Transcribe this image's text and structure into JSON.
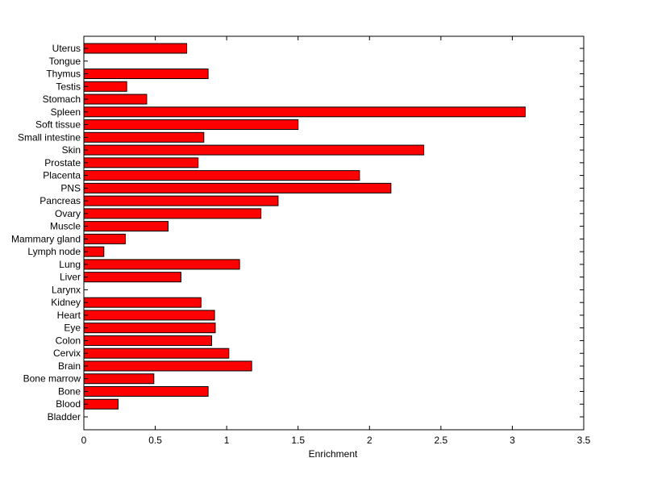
{
  "chart_data": {
    "type": "bar",
    "orientation": "horizontal",
    "title": "",
    "xlabel": "Enrichment",
    "ylabel": "",
    "xlim": [
      0,
      3.5
    ],
    "xticks": [
      "0",
      "0.5",
      "1",
      "1.5",
      "2",
      "2.5",
      "3",
      "3.5"
    ],
    "grid": false,
    "bar_color": "#ff0000",
    "categories": [
      "Bladder",
      "Blood",
      "Bone",
      "Bone marrow",
      "Brain",
      "Cervix",
      "Colon",
      "Eye",
      "Heart",
      "Kidney",
      "Larynx",
      "Liver",
      "Lung",
      "Lymph node",
      "Mammary gland",
      "Muscle",
      "Ovary",
      "Pancreas",
      "PNS",
      "Placenta",
      "Prostate",
      "Skin",
      "Small intestine",
      "Soft tissue",
      "Spleen",
      "Stomach",
      "Testis",
      "Thymus",
      "Tongue",
      "Uterus"
    ],
    "values": [
      0,
      0.24,
      0.87,
      0.49,
      1.175,
      1.015,
      0.895,
      0.92,
      0.915,
      0.82,
      0,
      0.68,
      1.09,
      0.14,
      0.29,
      0.59,
      1.24,
      1.36,
      2.15,
      1.93,
      0.8,
      2.38,
      0.84,
      1.5,
      3.09,
      0.44,
      0.3,
      0.87,
      0,
      0.72
    ]
  }
}
